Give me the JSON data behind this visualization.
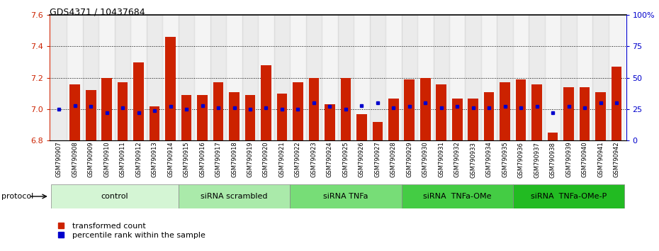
{
  "title": "GDS4371 / 10437684",
  "samples": [
    "GSM790907",
    "GSM790908",
    "GSM790909",
    "GSM790910",
    "GSM790911",
    "GSM790912",
    "GSM790913",
    "GSM790914",
    "GSM790915",
    "GSM790916",
    "GSM790917",
    "GSM790918",
    "GSM790919",
    "GSM790920",
    "GSM790921",
    "GSM790922",
    "GSM790923",
    "GSM790924",
    "GSM790925",
    "GSM790926",
    "GSM790927",
    "GSM790928",
    "GSM790929",
    "GSM790930",
    "GSM790931",
    "GSM790932",
    "GSM790933",
    "GSM790934",
    "GSM790935",
    "GSM790936",
    "GSM790937",
    "GSM790938",
    "GSM790939",
    "GSM790940",
    "GSM790941",
    "GSM790942"
  ],
  "red_values": [
    6.8,
    7.16,
    7.12,
    7.2,
    7.17,
    7.3,
    7.02,
    7.46,
    7.09,
    7.09,
    7.17,
    7.11,
    7.09,
    7.28,
    7.1,
    7.17,
    7.2,
    7.03,
    7.2,
    6.97,
    6.92,
    7.07,
    7.19,
    7.2,
    7.16,
    7.07,
    7.07,
    7.11,
    7.17,
    7.19,
    7.16,
    6.85,
    7.14,
    7.14,
    7.11,
    7.27
  ],
  "blue_values_pct": [
    25,
    28,
    27,
    22,
    26,
    22,
    24,
    27,
    25,
    28,
    26,
    26,
    25,
    26,
    25,
    25,
    30,
    27,
    25,
    28,
    30,
    26,
    27,
    30,
    26,
    27,
    26,
    26,
    27,
    26,
    27,
    22,
    27,
    26,
    30,
    30
  ],
  "ymin": 6.8,
  "ymax": 7.6,
  "yticks": [
    6.8,
    7.0,
    7.2,
    7.4,
    7.6
  ],
  "y2ticks_pct": [
    0,
    25,
    50,
    75,
    100
  ],
  "y2labels": [
    "0",
    "25",
    "50",
    "75",
    "100%"
  ],
  "dotted_yticks": [
    7.0,
    7.2,
    7.4
  ],
  "bar_color": "#cc2200",
  "blue_color": "#0000cc",
  "groups": [
    {
      "label": "control",
      "start": 0,
      "end": 7,
      "color": "#d4f5d4"
    },
    {
      "label": "siRNA scrambled",
      "start": 8,
      "end": 14,
      "color": "#aaeaaa"
    },
    {
      "label": "siRNA TNFa",
      "start": 15,
      "end": 21,
      "color": "#77dd77"
    },
    {
      "label": "siRNA  TNFa-OMe",
      "start": 22,
      "end": 28,
      "color": "#44cc44"
    },
    {
      "label": "siRNA  TNFa-OMe-P",
      "start": 29,
      "end": 35,
      "color": "#22bb22"
    }
  ],
  "protocol_label": "protocol",
  "legend_red": "transformed count",
  "legend_blue": "percentile rank within the sample",
  "tick_color_left": "#cc2200",
  "tick_color_right": "#0000cc"
}
